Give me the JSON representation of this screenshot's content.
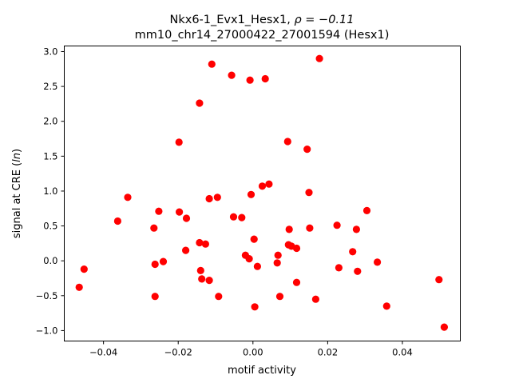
{
  "chart_data": {
    "type": "scatter",
    "title_line1": "Nkx6-1_Evx1_Hesx1, ",
    "title_rho": "ρ = −0.11",
    "title_line2": "mm10_chr14_27000422_27001594 (Hesx1)",
    "xlabel": "motif activity",
    "ylabel_prefix": "signal at CRE (",
    "ylabel_italic": "ln",
    "ylabel_suffix": ")",
    "xlim": [
      -0.0505,
      0.0555
    ],
    "ylim": [
      -1.15,
      3.08
    ],
    "x_ticks": [
      {
        "value": -0.04,
        "label": "−0.04"
      },
      {
        "value": -0.02,
        "label": "−0.02"
      },
      {
        "value": 0.0,
        "label": "0.00"
      },
      {
        "value": 0.02,
        "label": "0.02"
      },
      {
        "value": 0.04,
        "label": "0.04"
      }
    ],
    "y_ticks": [
      {
        "value": -1.0,
        "label": "−1.0"
      },
      {
        "value": -0.5,
        "label": "−0.5"
      },
      {
        "value": 0.0,
        "label": "0.0"
      },
      {
        "value": 0.5,
        "label": "0.5"
      },
      {
        "value": 1.0,
        "label": "1.0"
      },
      {
        "value": 1.5,
        "label": "1.5"
      },
      {
        "value": 2.0,
        "label": "2.0"
      },
      {
        "value": 2.5,
        "label": "2.5"
      },
      {
        "value": 3.0,
        "label": "3.0"
      }
    ],
    "grid": false,
    "marker_color": "#ff0000",
    "points": [
      {
        "x": -0.0465,
        "y": -0.38
      },
      {
        "x": -0.0452,
        "y": -0.12
      },
      {
        "x": -0.0362,
        "y": 0.57
      },
      {
        "x": -0.0335,
        "y": 0.91
      },
      {
        "x": -0.0265,
        "y": 0.47
      },
      {
        "x": -0.0262,
        "y": -0.05
      },
      {
        "x": -0.0262,
        "y": -0.51
      },
      {
        "x": -0.0252,
        "y": 0.71
      },
      {
        "x": -0.024,
        "y": -0.01
      },
      {
        "x": -0.0198,
        "y": 1.7
      },
      {
        "x": -0.0197,
        "y": 0.7
      },
      {
        "x": -0.018,
        "y": 0.15
      },
      {
        "x": -0.0178,
        "y": 0.61
      },
      {
        "x": -0.0143,
        "y": 2.26
      },
      {
        "x": -0.0143,
        "y": 0.26
      },
      {
        "x": -0.014,
        "y": -0.14
      },
      {
        "x": -0.0137,
        "y": -0.26
      },
      {
        "x": -0.0127,
        "y": 0.24
      },
      {
        "x": -0.0117,
        "y": 0.89
      },
      {
        "x": -0.0117,
        "y": -0.28
      },
      {
        "x": -0.011,
        "y": 2.82
      },
      {
        "x": -0.0095,
        "y": 0.91
      },
      {
        "x": -0.0092,
        "y": -0.51
      },
      {
        "x": -0.0057,
        "y": 2.66
      },
      {
        "x": -0.0052,
        "y": 0.63
      },
      {
        "x": -0.003,
        "y": 0.62
      },
      {
        "x": -0.002,
        "y": 0.08
      },
      {
        "x": -0.001,
        "y": 0.03
      },
      {
        "x": -0.0008,
        "y": 2.59
      },
      {
        "x": -0.0005,
        "y": 0.95
      },
      {
        "x": 0.0003,
        "y": 0.31
      },
      {
        "x": 0.0005,
        "y": -0.66
      },
      {
        "x": 0.0012,
        "y": -0.08
      },
      {
        "x": 0.0025,
        "y": 1.07
      },
      {
        "x": 0.0033,
        "y": 2.61
      },
      {
        "x": 0.0043,
        "y": 1.1
      },
      {
        "x": 0.0065,
        "y": -0.03
      },
      {
        "x": 0.0067,
        "y": 0.08
      },
      {
        "x": 0.0072,
        "y": -0.51
      },
      {
        "x": 0.0093,
        "y": 1.71
      },
      {
        "x": 0.0095,
        "y": 0.23
      },
      {
        "x": 0.0097,
        "y": 0.45
      },
      {
        "x": 0.0103,
        "y": 0.21
      },
      {
        "x": 0.0117,
        "y": 0.18
      },
      {
        "x": 0.0117,
        "y": -0.31
      },
      {
        "x": 0.0145,
        "y": 1.6
      },
      {
        "x": 0.015,
        "y": 0.98
      },
      {
        "x": 0.0152,
        "y": 0.47
      },
      {
        "x": 0.0168,
        "y": -0.55
      },
      {
        "x": 0.0178,
        "y": 2.9
      },
      {
        "x": 0.0225,
        "y": 0.51
      },
      {
        "x": 0.023,
        "y": -0.1
      },
      {
        "x": 0.0267,
        "y": 0.13
      },
      {
        "x": 0.0277,
        "y": 0.45
      },
      {
        "x": 0.028,
        "y": -0.15
      },
      {
        "x": 0.0305,
        "y": 0.72
      },
      {
        "x": 0.0333,
        "y": -0.02
      },
      {
        "x": 0.0358,
        "y": -0.65
      },
      {
        "x": 0.0498,
        "y": -0.27
      },
      {
        "x": 0.0512,
        "y": -0.95
      }
    ]
  }
}
